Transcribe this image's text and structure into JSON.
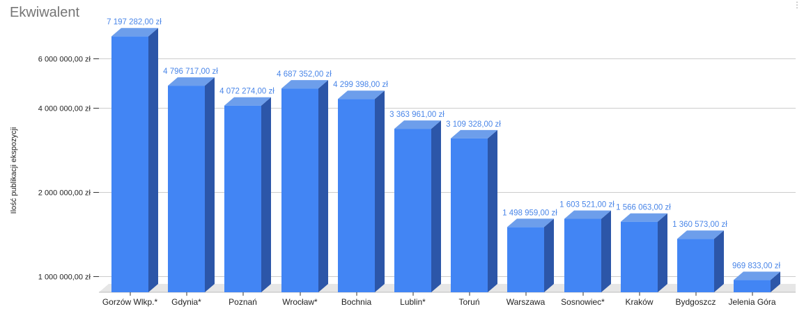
{
  "chart_data": {
    "type": "bar",
    "title": "Ekwiwalent",
    "xlabel": "",
    "ylabel": "Ilość publikacji ekspozycji",
    "y_scale": "log",
    "ylim": [
      870000,
      7600000
    ],
    "grid": true,
    "legend": "none",
    "categories": [
      "Gorzów Wlkp.*",
      "Gdynia*",
      "Poznań",
      "Wrocław*",
      "Bochnia",
      "Lublin*",
      "Toruń",
      "Warszawa",
      "Sosnowiec*",
      "Kraków",
      "Bydgoszcz",
      "Jelenia Góra"
    ],
    "values": [
      7197282,
      4796717,
      4072274,
      4687352,
      4299398,
      3363961,
      3109328,
      1498959,
      1603521,
      1566063,
      1360573,
      969833
    ],
    "data_labels": [
      "7 197 282,00 zł",
      "4 796 717,00 zł",
      "4 072 274,00 zł",
      "4 687 352,00 zł",
      "4 299 398,00 zł",
      "3 363 961,00 zł",
      "3 109 328,00 zł",
      "1 498 959,00 zł",
      "1 603 521,00 zł",
      "1 566 063,00 zł",
      "1 360 573,00 zł",
      "969 833,00 zł"
    ],
    "y_ticks": [
      1000000,
      2000000,
      4000000,
      6000000
    ],
    "y_tick_labels": [
      "1 000 000,00 zł",
      "2 000 000,00 zł",
      "4 000 000,00 zł",
      "6 000 000,00 zł"
    ]
  },
  "colors": {
    "bar_front": "#4285f4",
    "bar_top": "#6d9eeb",
    "bar_side": "#2c56a8",
    "grid": "#cccccc",
    "floor": "#e6e6e6",
    "label": "#4a86e8"
  },
  "menu_icon": "more-vert-icon"
}
